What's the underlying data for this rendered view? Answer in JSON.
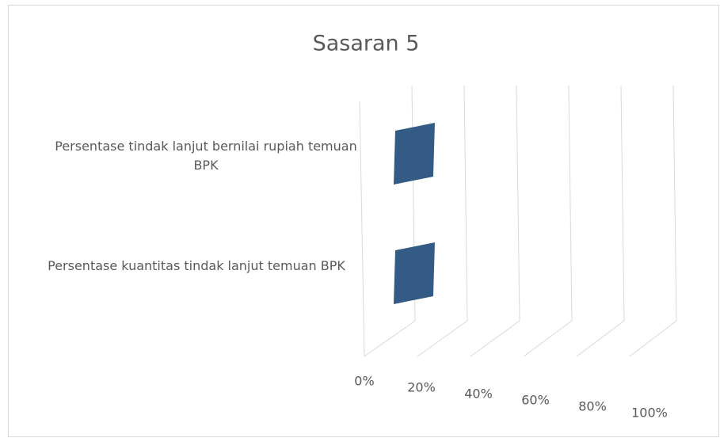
{
  "chart_data": {
    "type": "bar3d",
    "title": "Sasaran 5",
    "categories": [
      "Persentase tindak lanjut bernilai rupiah temuan BPK",
      "Persentase kuantitas tindak lanjut temuan BPK"
    ],
    "values": [
      10,
      10
    ],
    "color": "#335b85",
    "xlim": [
      0,
      100
    ],
    "xticks": [
      {
        "value": 0,
        "label": "0%"
      },
      {
        "value": 20,
        "label": "20%"
      },
      {
        "value": 40,
        "label": "40%"
      },
      {
        "value": 60,
        "label": "60%"
      },
      {
        "value": 80,
        "label": "80%"
      },
      {
        "value": 100,
        "label": "100%"
      }
    ],
    "grid": true
  }
}
